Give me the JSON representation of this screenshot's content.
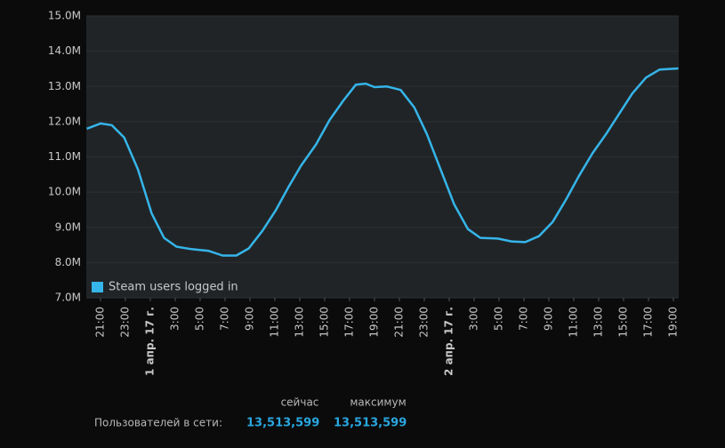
{
  "chart_data": {
    "type": "line",
    "xticks": [
      {
        "value": 0,
        "label": "21:00"
      },
      {
        "value": 2,
        "label": "23:00"
      },
      {
        "value": 4,
        "label": "1 апр. 17 г."
      },
      {
        "value": 6,
        "label": "3:00"
      },
      {
        "value": 8,
        "label": "5:00"
      },
      {
        "value": 10,
        "label": "7:00"
      },
      {
        "value": 12,
        "label": "9:00"
      },
      {
        "value": 14,
        "label": "11:00"
      },
      {
        "value": 16,
        "label": "13:00"
      },
      {
        "value": 18,
        "label": "15:00"
      },
      {
        "value": 20,
        "label": "17:00"
      },
      {
        "value": 22,
        "label": "19:00"
      },
      {
        "value": 24,
        "label": "21:00"
      },
      {
        "value": 26,
        "label": "23:00"
      },
      {
        "value": 28,
        "label": "2 апр. 17 г."
      },
      {
        "value": 30,
        "label": "3:00"
      },
      {
        "value": 32,
        "label": "5:00"
      },
      {
        "value": 34,
        "label": "7:00"
      },
      {
        "value": 36,
        "label": "9:00"
      },
      {
        "value": 38,
        "label": "11:00"
      },
      {
        "value": 40,
        "label": "13:00"
      },
      {
        "value": 42,
        "label": "15:00"
      },
      {
        "value": 44,
        "label": "17:00"
      },
      {
        "value": 46,
        "label": "19:00"
      }
    ],
    "xlim": [
      -1.14,
      46.43
    ],
    "ylim": [
      7,
      15
    ],
    "yticks": [
      {
        "value": 7,
        "label": "7.0M"
      },
      {
        "value": 8,
        "label": "8.0M"
      },
      {
        "value": 9,
        "label": "9.0M"
      },
      {
        "value": 10,
        "label": "10.0M"
      },
      {
        "value": 11,
        "label": "11.0M"
      },
      {
        "value": 12,
        "label": "12.0M"
      },
      {
        "value": 13,
        "label": "13.0M"
      },
      {
        "value": 14,
        "label": "14.0M"
      },
      {
        "value": 15,
        "label": "15.0M"
      }
    ],
    "grid": true,
    "legend": "bottom-left",
    "x": [
      -1.1,
      0,
      0.9,
      1.9,
      3.0,
      4.1,
      5.1,
      6.1,
      7.3,
      8.7,
      9.8,
      10.9,
      11.9,
      13.0,
      14.1,
      15.1,
      16.1,
      17.3,
      18.4,
      19.5,
      20.5,
      21.3,
      22.0,
      23.0,
      24.1,
      25.2,
      26.2,
      27.3,
      28.4,
      29.5,
      30.5,
      31.9,
      33.0,
      34.1,
      35.2,
      36.3,
      37.4,
      38.4,
      39.5,
      40.6,
      41.6,
      42.7,
      43.8,
      44.9,
      46.4
    ],
    "series": [
      {
        "name": "Steam users logged in",
        "color": "#35b5e9",
        "values": [
          11.8,
          11.95,
          11.9,
          11.55,
          10.65,
          9.4,
          8.7,
          8.45,
          8.38,
          8.33,
          8.2,
          8.2,
          8.4,
          8.9,
          9.5,
          10.15,
          10.75,
          11.35,
          12.05,
          12.6,
          13.05,
          13.08,
          12.98,
          13.0,
          12.9,
          12.4,
          11.65,
          10.65,
          9.65,
          8.95,
          8.7,
          8.68,
          8.6,
          8.58,
          8.75,
          9.15,
          9.8,
          10.45,
          11.1,
          11.65,
          12.2,
          12.8,
          13.25,
          13.48,
          13.51
        ]
      }
    ]
  },
  "summary": {
    "headers": [
      "сейчас",
      "максимум"
    ],
    "label": "Пользователей в сети:",
    "values": [
      "13,513,599",
      "13,513,599"
    ]
  }
}
